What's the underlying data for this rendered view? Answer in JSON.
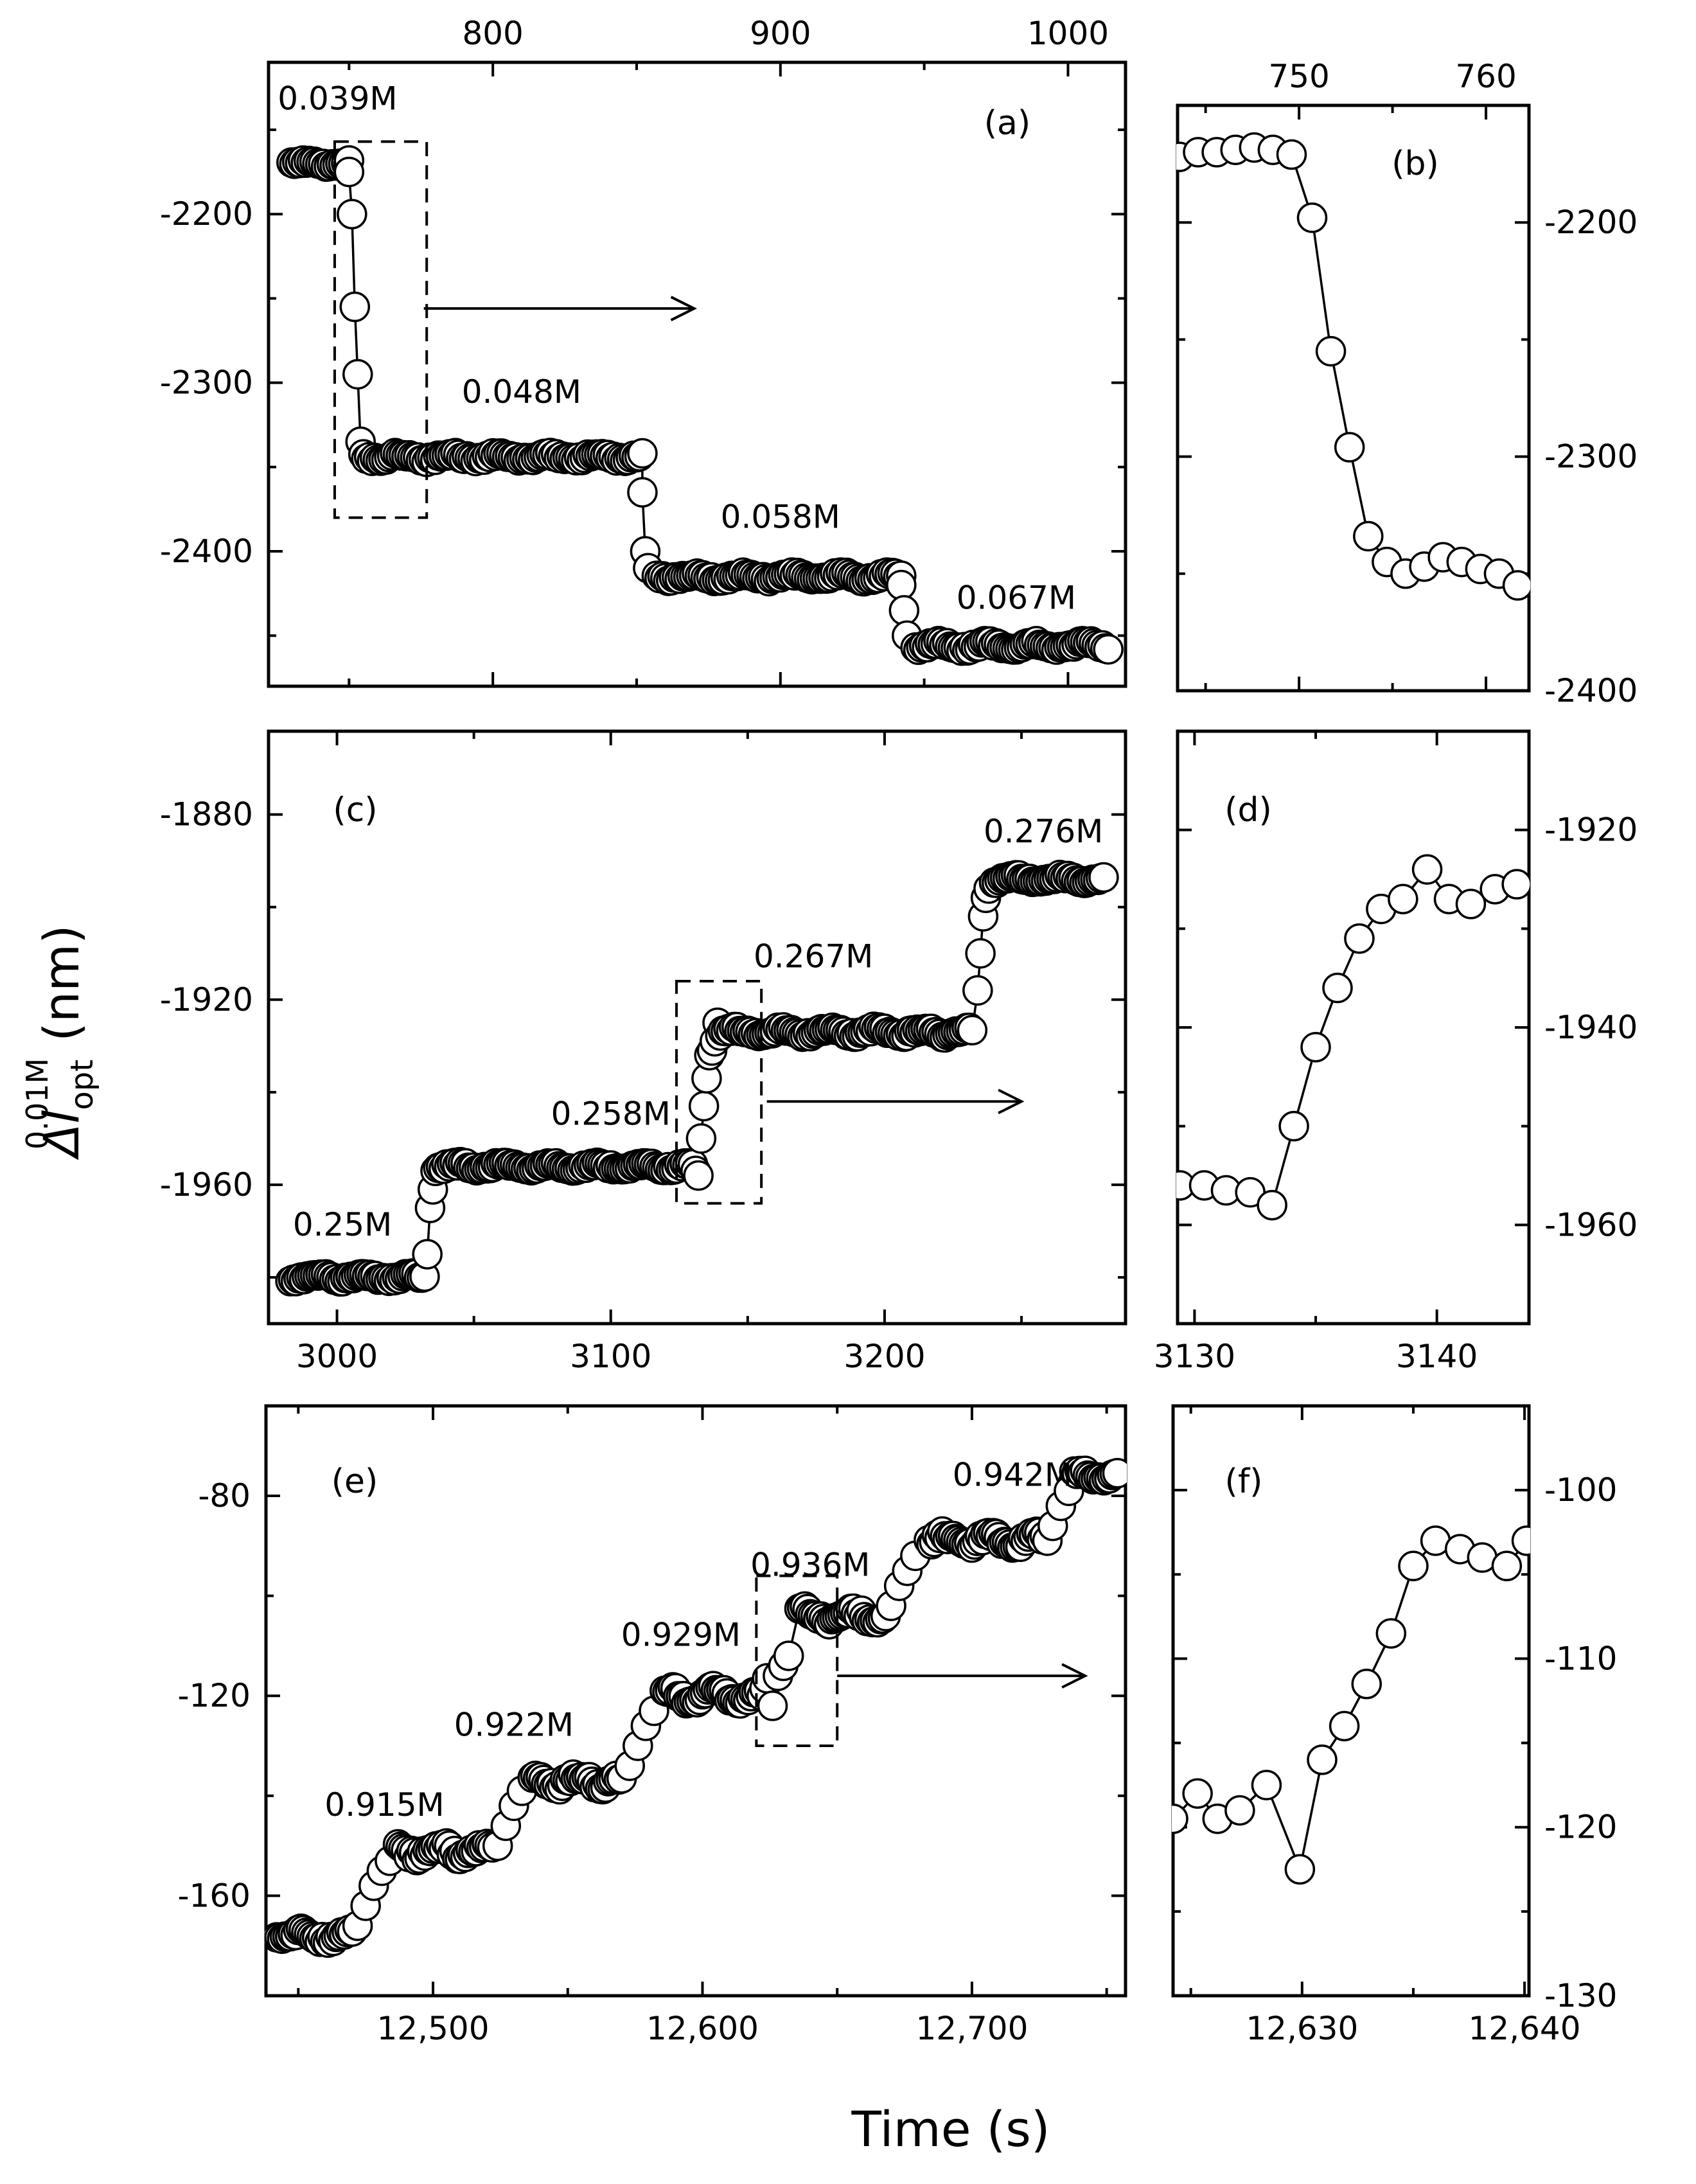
{
  "figure": {
    "y_axis_title": "Δl",
    "y_axis_title_sub": "opt",
    "y_axis_title_sup": "0.01M",
    "y_axis_title_unit": "(nm)",
    "x_axis_title": "Time (s)"
  },
  "chart_data": [
    {
      "id": "a",
      "type": "scatter",
      "label": "(a)",
      "xlim": [
        722,
        1020
      ],
      "ylim": [
        -2480,
        -2110
      ],
      "x_ticks": [
        800,
        900,
        1000
      ],
      "x_tick_labels": [
        "800",
        "900",
        "1000"
      ],
      "x_tick_position": "top",
      "y_ticks": [
        -2200,
        -2300,
        -2400
      ],
      "y_tick_labels": [
        "-2200",
        "-2300",
        "-2400"
      ],
      "y_tick_position": "left",
      "segments": [
        {
          "start": 730,
          "end": 750,
          "mean": -2170,
          "amp": 2
        },
        {
          "start": 755,
          "end": 852,
          "mean": -2344,
          "amp": 3
        },
        {
          "start": 857,
          "end": 942,
          "mean": -2415,
          "amp": 3
        },
        {
          "start": 947,
          "end": 1014,
          "mean": -2456,
          "amp": 3
        }
      ],
      "transitions": [
        {
          "x": [
            750,
            751,
            752,
            753,
            754
          ],
          "y": [
            -2175,
            -2200,
            -2255,
            -2295,
            -2335
          ]
        },
        {
          "x": [
            852,
            853,
            854
          ],
          "y": [
            -2365,
            -2400,
            -2410
          ]
        },
        {
          "x": [
            942,
            943,
            944
          ],
          "y": [
            -2420,
            -2435,
            -2450
          ]
        }
      ],
      "concentrations": [
        {
          "text": "0.039M",
          "x": 746,
          "y": -2138
        },
        {
          "text": "0.048M",
          "x": 810,
          "y": -2312
        },
        {
          "text": "0.058M",
          "x": 900,
          "y": -2386
        },
        {
          "text": "0.067M",
          "x": 982,
          "y": -2434
        }
      ],
      "zoom_region": {
        "x": [
          745,
          777
        ],
        "y": [
          -2380,
          -2157
        ]
      },
      "arrow": {
        "x": [
          776,
          870
        ],
        "y": [
          -2256,
          -2256
        ]
      }
    },
    {
      "id": "b",
      "type": "line",
      "label": "(b)",
      "xlim": [
        743.5,
        762.3
      ],
      "ylim": [
        -2400,
        -2150
      ],
      "x_ticks": [
        750,
        760
      ],
      "x_tick_labels": [
        "750",
        "760"
      ],
      "x_tick_position": "top",
      "y_ticks": [
        -2200,
        -2300,
        -2400
      ],
      "y_tick_labels": [
        "-2200",
        "-2300",
        "-2400"
      ],
      "y_tick_position": "right",
      "x": [
        743.6,
        744.6,
        745.6,
        746.6,
        747.6,
        748.6,
        749.6,
        750.7,
        751.7,
        752.7,
        753.7,
        754.7,
        755.7,
        756.7,
        757.7,
        758.7,
        759.7,
        760.7,
        761.7
      ],
      "y": [
        -2172,
        -2170,
        -2170,
        -2169,
        -2168,
        -2169,
        -2171,
        -2198,
        -2255,
        -2296,
        -2334,
        -2345,
        -2350,
        -2347,
        -2343,
        -2345,
        -2348,
        -2350,
        -2355
      ],
      "concentrations": []
    },
    {
      "id": "c",
      "type": "scatter",
      "label": "(c)",
      "xlim": [
        2975,
        3288
      ],
      "ylim": [
        -1990,
        -1862
      ],
      "x_ticks": [
        3000,
        3100,
        3200
      ],
      "x_tick_labels": [
        "3000",
        "3100",
        "3200"
      ],
      "x_tick_position": "bottom",
      "y_ticks": [
        -1880,
        -1920,
        -1960
      ],
      "y_tick_labels": [
        "-1880",
        "-1920",
        "-1960"
      ],
      "y_tick_position": "left",
      "segments": [
        {
          "start": 2983,
          "end": 3032,
          "mean": -1980,
          "amp": 1
        },
        {
          "start": 3037,
          "end": 3130,
          "mean": -1956,
          "amp": 1
        },
        {
          "start": 3140,
          "end": 3232,
          "mean": -1927,
          "amp": 1.2
        },
        {
          "start": 3240,
          "end": 3280,
          "mean": -1894,
          "amp": 1
        }
      ],
      "transitions": [
        {
          "x": [
            3033,
            3034,
            3035,
            3036
          ],
          "y": [
            -1975,
            -1965,
            -1961,
            -1957
          ]
        },
        {
          "x": [
            3131,
            3132,
            3133,
            3134,
            3135,
            3136,
            3137,
            3138,
            3139
          ],
          "y": [
            -1957,
            -1958,
            -1950,
            -1943,
            -1937,
            -1932,
            -1931,
            -1929,
            -1925
          ]
        },
        {
          "x": [
            3234,
            3235,
            3236,
            3237,
            3238
          ],
          "y": [
            -1918,
            -1910,
            -1902,
            -1898,
            -1896
          ]
        }
      ],
      "concentrations": [
        {
          "text": "0.25M",
          "x": 3002,
          "y": -1971
        },
        {
          "text": "0.258M",
          "x": 3100,
          "y": -1947
        },
        {
          "text": "0.267M",
          "x": 3174,
          "y": -1913
        },
        {
          "text": "0.276M",
          "x": 3258,
          "y": -1886
        }
      ],
      "zoom_region": {
        "x": [
          3124,
          3155
        ],
        "y": [
          -1964,
          -1916
        ]
      },
      "arrow": {
        "x": [
          3157,
          3250
        ],
        "y": [
          -1942,
          -1942
        ]
      }
    },
    {
      "id": "d",
      "type": "line",
      "label": "(d)",
      "xlim": [
        3129.3,
        3143.8
      ],
      "ylim": [
        -1970,
        -1910
      ],
      "x_ticks": [
        3130,
        3140
      ],
      "x_tick_labels": [
        "3130",
        "3140"
      ],
      "x_tick_position": "bottom",
      "y_ticks": [
        -1920,
        -1940,
        -1960
      ],
      "y_tick_labels": [
        "-1920",
        "-1940",
        "-1960"
      ],
      "y_tick_position": "right",
      "x": [
        3129.4,
        3130.4,
        3131.3,
        3132.3,
        3133.2,
        3134.1,
        3135.0,
        3135.9,
        3136.8,
        3137.7,
        3138.6,
        3139.6,
        3140.5,
        3141.4,
        3142.4,
        3143.3
      ],
      "y": [
        -1956,
        -1956,
        -1956.5,
        -1956.7,
        -1958,
        -1950,
        -1942,
        -1936,
        -1931,
        -1928,
        -1927,
        -1924,
        -1927,
        -1927.5,
        -1926,
        -1925.5
      ],
      "concentrations": []
    },
    {
      "id": "e",
      "type": "scatter",
      "label": "(e)",
      "xlim": [
        12438,
        12757
      ],
      "ylim": [
        -180,
        -62
      ],
      "x_ticks": [
        12500,
        12600,
        12700
      ],
      "x_tick_labels": [
        "12,500",
        "12,600",
        "12,700"
      ],
      "x_tick_position": "bottom",
      "y_ticks": [
        -80,
        -120,
        -160
      ],
      "y_tick_labels": [
        "-80",
        "-120",
        "-160"
      ],
      "y_tick_position": "left",
      "segments": [
        {
          "start": 12442,
          "end": 12470,
          "mean": -168,
          "amp": 1.5
        },
        {
          "start": 12487,
          "end": 12522,
          "mean": -151,
          "amp": 2
        },
        {
          "start": 12537,
          "end": 12570,
          "mean": -137,
          "amp": 2
        },
        {
          "start": 12586,
          "end": 12620,
          "mean": -120,
          "amp": 2
        },
        {
          "start": 12636,
          "end": 12668,
          "mean": -104,
          "amp": 2
        },
        {
          "start": 12684,
          "end": 12728,
          "mean": -89,
          "amp": 2
        },
        {
          "start": 12738,
          "end": 12754,
          "mean": -76,
          "amp": 1.5
        }
      ],
      "transitions": [
        {
          "x": [
            12472,
            12475,
            12478,
            12481,
            12484
          ],
          "y": [
            -166,
            -162,
            -158,
            -155,
            -153
          ]
        },
        {
          "x": [
            12524,
            12527,
            12530,
            12533
          ],
          "y": [
            -150,
            -146,
            -142,
            -139
          ]
        },
        {
          "x": [
            12573,
            12576,
            12579,
            12582
          ],
          "y": [
            -134,
            -130,
            -126,
            -123
          ]
        },
        {
          "x": [
            12621,
            12622,
            12623,
            12624,
            12626,
            12628,
            12630,
            12632
          ],
          "y": [
            -119,
            -120,
            -118.5,
            -116.5,
            -122,
            -116,
            -114,
            -112
          ]
        },
        {
          "x": [
            12670,
            12673,
            12676,
            12679
          ],
          "y": [
            -102,
            -98,
            -95,
            -92
          ]
        },
        {
          "x": [
            12730,
            12733,
            12736
          ],
          "y": [
            -86,
            -82,
            -79
          ]
        }
      ],
      "concentrations": [
        {
          "text": "0.915M",
          "x": 12482,
          "y": -144
        },
        {
          "text": "0.922M",
          "x": 12530,
          "y": -128
        },
        {
          "text": "0.929M",
          "x": 12592,
          "y": -110
        },
        {
          "text": "0.936M",
          "x": 12640,
          "y": -96
        },
        {
          "text": "0.942M",
          "x": 12715,
          "y": -78
        }
      ],
      "zoom_region": {
        "x": [
          12620,
          12650
        ],
        "y": [
          -130,
          -96
        ]
      },
      "arrow": {
        "x": [
          12650,
          12742
        ],
        "y": [
          -116,
          -116
        ]
      }
    },
    {
      "id": "f",
      "type": "line",
      "label": "(f)",
      "xlim": [
        12624.2,
        12640.2
      ],
      "ylim": [
        -130,
        -95
      ],
      "x_ticks": [
        12630,
        12640
      ],
      "x_tick_labels": [
        "12,630",
        "12,640"
      ],
      "x_tick_position": "bottom",
      "y_ticks": [
        -100,
        -110,
        -120,
        -130
      ],
      "y_tick_labels": [
        "-100",
        "-110",
        "-120",
        "-130"
      ],
      "y_tick_position": "right",
      "x": [
        12624.2,
        12625.3,
        12626.2,
        12627.2,
        12628.4,
        12629.9,
        12630.9,
        12631.9,
        12632.9,
        12634.0,
        12635.0,
        12636.0,
        12637.1,
        12638.1,
        12639.2,
        12640.1
      ],
      "y": [
        -119.5,
        -118,
        -119.5,
        -119,
        -117.5,
        -122.5,
        -116,
        -114,
        -111.5,
        -108.5,
        -104.5,
        -103,
        -103.5,
        -104,
        -104.5,
        -103
      ],
      "concentrations": []
    }
  ]
}
